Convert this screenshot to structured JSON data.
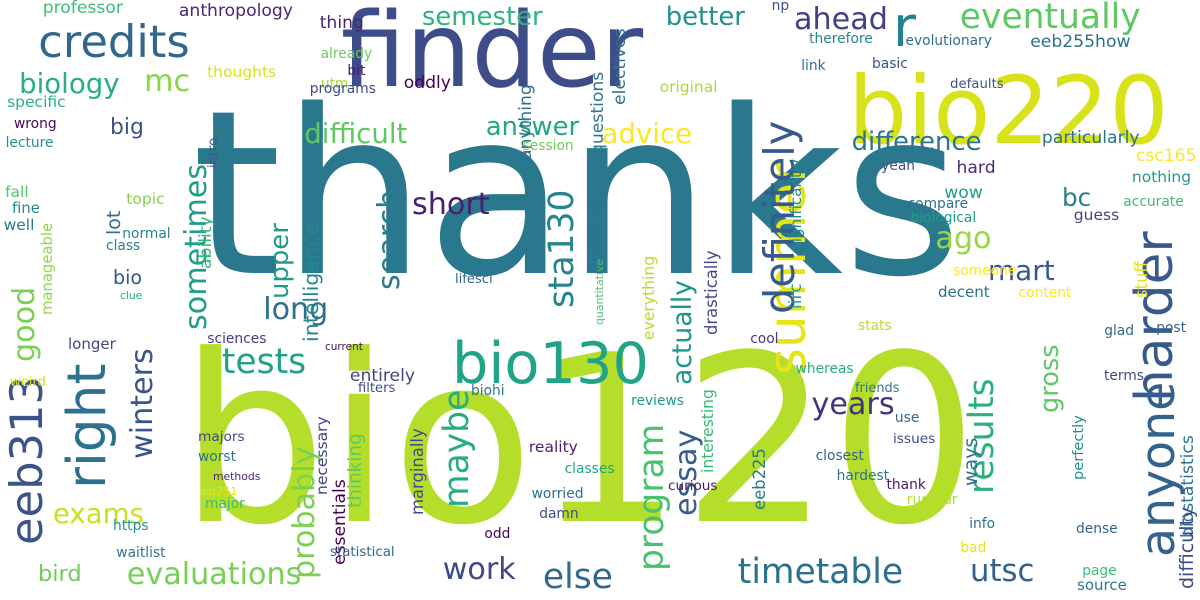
{
  "words": [
    {
      "text": "thanks",
      "color": "#2a788e",
      "vertical": false
    },
    {
      "text": "bio120",
      "color": "#b5de2b",
      "vertical": false
    },
    {
      "text": "finder",
      "color": "#3e4c8a",
      "vertical": false
    },
    {
      "text": "bio220",
      "color": "#d8e219",
      "vertical": false
    },
    {
      "text": "credits",
      "color": "#31668e",
      "vertical": false
    },
    {
      "text": "r",
      "color": "#26828e",
      "vertical": false
    },
    {
      "text": "eventually",
      "color": "#5ec962",
      "vertical": false
    },
    {
      "text": "bio130",
      "color": "#20a386",
      "vertical": false
    },
    {
      "text": "summer",
      "color": "#e5e419",
      "vertical": true
    },
    {
      "text": "right",
      "color": "#2c728e",
      "vertical": true
    },
    {
      "text": "eeb313",
      "color": "#3b528b",
      "vertical": true
    },
    {
      "text": "harder",
      "color": "#38598c",
      "vertical": true
    },
    {
      "text": "anyone",
      "color": "#33638d",
      "vertical": true
    },
    {
      "text": "definitely",
      "color": "#375a8c",
      "vertical": true
    },
    {
      "text": "evaluations",
      "color": "#75d054",
      "vertical": false
    },
    {
      "text": "timetable",
      "color": "#2d708e",
      "vertical": false
    },
    {
      "text": "work",
      "color": "#3e4989",
      "vertical": false
    },
    {
      "text": "else",
      "color": "#2f6b8e",
      "vertical": false
    },
    {
      "text": "tests",
      "color": "#1fa187",
      "vertical": false
    },
    {
      "text": "sta130",
      "color": "#25848e",
      "vertical": true
    },
    {
      "text": "maybe",
      "color": "#27ad81",
      "vertical": true
    },
    {
      "text": "results",
      "color": "#2ab07f",
      "vertical": true
    },
    {
      "text": "program",
      "color": "#4ac16d",
      "vertical": true
    },
    {
      "text": "search",
      "color": "#287c8e",
      "vertical": true
    },
    {
      "text": "good",
      "color": "#7ad151",
      "vertical": true
    },
    {
      "text": "sometimes",
      "color": "#1f9e89",
      "vertical": true
    },
    {
      "text": "mart",
      "color": "#39568c",
      "vertical": false
    },
    {
      "text": "ago",
      "color": "#95d840",
      "vertical": false
    },
    {
      "text": "utsc",
      "color": "#355f8d",
      "vertical": false
    },
    {
      "text": "essay",
      "color": "#365d8d",
      "vertical": true
    },
    {
      "text": "years",
      "color": "#46337e",
      "vertical": false
    },
    {
      "text": "semester",
      "color": "#2fb47c",
      "vertical": false
    },
    {
      "text": "biology",
      "color": "#28ae80",
      "vertical": false
    },
    {
      "text": "mc",
      "color": "#8bd646",
      "vertical": false
    },
    {
      "text": "ahead",
      "color": "#424086",
      "vertical": false
    },
    {
      "text": "better",
      "color": "#21918c",
      "vertical": false
    },
    {
      "text": "difficult",
      "color": "#5ec962",
      "vertical": false
    },
    {
      "text": "answer",
      "color": "#22a785",
      "vertical": false
    },
    {
      "text": "advice",
      "color": "#fde725",
      "vertical": false
    },
    {
      "text": "difference",
      "color": "#2c738e",
      "vertical": false
    },
    {
      "text": "short",
      "color": "#481f70",
      "vertical": false
    },
    {
      "text": "long",
      "color": "#2e6e8e",
      "vertical": false
    },
    {
      "text": "upper",
      "color": "#1e9b8a",
      "vertical": true
    },
    {
      "text": "bc",
      "color": "#277f8e",
      "vertical": false
    },
    {
      "text": "big",
      "color": "#3b528b",
      "vertical": false
    },
    {
      "text": "bio",
      "color": "#39568c",
      "vertical": false
    },
    {
      "text": "winters",
      "color": "#3a548c",
      "vertical": true
    },
    {
      "text": "probably",
      "color": "#7ad151",
      "vertical": true
    },
    {
      "text": "actually",
      "color": "#1f968b",
      "vertical": true
    },
    {
      "text": "gross",
      "color": "#5ec962",
      "vertical": true
    },
    {
      "text": "exams",
      "color": "#cae11f",
      "vertical": false
    },
    {
      "text": "bird",
      "color": "#6ccd5a",
      "vertical": false
    },
    {
      "text": "entirely",
      "color": "#414487",
      "vertical": false
    },
    {
      "text": "particularly",
      "color": "#2c728e",
      "vertical": false
    },
    {
      "text": "eeb255how",
      "color": "#2d708e",
      "vertical": false
    },
    {
      "text": "professor",
      "color": "#3dbc74",
      "vertical": false
    },
    {
      "text": "anthropology",
      "color": "#482878",
      "vertical": false
    },
    {
      "text": "thing",
      "color": "#482475",
      "vertical": false
    },
    {
      "text": "np",
      "color": "#3b528b",
      "vertical": false
    },
    {
      "text": "hard",
      "color": "#472d7b",
      "vertical": false
    },
    {
      "text": "wow",
      "color": "#1fa088",
      "vertical": false
    },
    {
      "text": "thoughts",
      "color": "#d8e219",
      "vertical": false
    },
    {
      "text": "already",
      "color": "#6ccd5a",
      "vertical": false
    },
    {
      "text": "bit",
      "color": "#481a6c",
      "vertical": false
    },
    {
      "text": "oddly",
      "color": "#440154",
      "vertical": false
    },
    {
      "text": "utm",
      "color": "#a2da37",
      "vertical": false
    },
    {
      "text": "programs",
      "color": "#3e4a89",
      "vertical": false
    },
    {
      "text": "anything",
      "color": "#2e6f8e",
      "vertical": true
    },
    {
      "text": "electives",
      "color": "#2d718e",
      "vertical": true
    },
    {
      "text": "questions",
      "color": "#2a768e",
      "vertical": true
    },
    {
      "text": "therefore",
      "color": "#25838e",
      "vertical": false
    },
    {
      "text": "evolutionary",
      "color": "#2c728e",
      "vertical": false
    },
    {
      "text": "link",
      "color": "#2d708e",
      "vertical": false
    },
    {
      "text": "basic",
      "color": "#3b528b",
      "vertical": false
    },
    {
      "text": "defaults",
      "color": "#39558c",
      "vertical": false
    },
    {
      "text": "original",
      "color": "#a8db34",
      "vertical": false
    },
    {
      "text": "specific",
      "color": "#2ab07f",
      "vertical": false
    },
    {
      "text": "wrong",
      "color": "#450559",
      "vertical": false
    },
    {
      "text": "lecture",
      "color": "#20928c",
      "vertical": false
    },
    {
      "text": "session",
      "color": "#6ccd5a",
      "vertical": false
    },
    {
      "text": "intro",
      "color": "#375b8d",
      "vertical": true
    },
    {
      "text": "significantly",
      "color": "#23898e",
      "vertical": true
    },
    {
      "text": "yeah",
      "color": "#3a538b",
      "vertical": false
    },
    {
      "text": "csc165",
      "color": "#fde725",
      "vertical": false
    },
    {
      "text": "nothing",
      "color": "#1f9a8a",
      "vertical": false
    },
    {
      "text": "fall",
      "color": "#56c667",
      "vertical": false
    },
    {
      "text": "fine",
      "color": "#23888e",
      "vertical": false
    },
    {
      "text": "well",
      "color": "#2a768e",
      "vertical": false
    },
    {
      "text": "topic",
      "color": "#84d44b",
      "vertical": false
    },
    {
      "text": "lot",
      "color": "#2e6f8e",
      "vertical": true
    },
    {
      "text": "ability",
      "color": "#31b57b",
      "vertical": true
    },
    {
      "text": "intelligence",
      "color": "#24878e",
      "vertical": true
    },
    {
      "text": "instead",
      "color": "#2c738e",
      "vertical": true
    },
    {
      "text": "accurate",
      "color": "#3dbc74",
      "vertical": false
    },
    {
      "text": "guess",
      "color": "#414487",
      "vertical": false
    },
    {
      "text": "compare",
      "color": "#2d708e",
      "vertical": false
    },
    {
      "text": "biological",
      "color": "#1f9e89",
      "vertical": false
    },
    {
      "text": "manageable",
      "color": "#8fd744",
      "vertical": true
    },
    {
      "text": "class",
      "color": "#287d8e",
      "vertical": false
    },
    {
      "text": "normal",
      "color": "#24878e",
      "vertical": false
    },
    {
      "text": "quantitative",
      "color": "#4ac16d",
      "vertical": true
    },
    {
      "text": "everything",
      "color": "#b8de29",
      "vertical": true
    },
    {
      "text": "drastically",
      "color": "#3e4989",
      "vertical": true
    },
    {
      "text": "iirc",
      "color": "#20a486",
      "vertical": true
    },
    {
      "text": "stuff",
      "color": "#e5e419",
      "vertical": true
    },
    {
      "text": "someone",
      "color": "#fde725",
      "vertical": false
    },
    {
      "text": "lifesci",
      "color": "#33638d",
      "vertical": false
    },
    {
      "text": "clue",
      "color": "#22a785",
      "vertical": false
    },
    {
      "text": "decent",
      "color": "#2d708e",
      "vertical": false
    },
    {
      "text": "content",
      "color": "#fde725",
      "vertical": false
    },
    {
      "text": "stats",
      "color": "#b5de2b",
      "vertical": false
    },
    {
      "text": "glad",
      "color": "#31688e",
      "vertical": false
    },
    {
      "text": "post",
      "color": "#33638d",
      "vertical": false
    },
    {
      "text": "longer",
      "color": "#3f4788",
      "vertical": false
    },
    {
      "text": "sciences",
      "color": "#443a83",
      "vertical": false
    },
    {
      "text": "cool",
      "color": "#453781",
      "vertical": false
    },
    {
      "text": "whereas",
      "color": "#26ad81",
      "vertical": false
    },
    {
      "text": "terms",
      "color": "#3e4989",
      "vertical": false
    },
    {
      "text": "current",
      "color": "#471164",
      "vertical": false
    },
    {
      "text": "weird",
      "color": "#d8e219",
      "vertical": false
    },
    {
      "text": "filters",
      "color": "#3e4c8a",
      "vertical": false
    },
    {
      "text": "biohi",
      "color": "#2c728e",
      "vertical": false
    },
    {
      "text": "friends",
      "color": "#2a768e",
      "vertical": false
    },
    {
      "text": "reviews",
      "color": "#1f998a",
      "vertical": false
    },
    {
      "text": "use",
      "color": "#31668e",
      "vertical": false
    },
    {
      "text": "issues",
      "color": "#3e4989",
      "vertical": false
    },
    {
      "text": "necessary",
      "color": "#414487",
      "vertical": true
    },
    {
      "text": "marginally",
      "color": "#3e4989",
      "vertical": true
    },
    {
      "text": "interesting",
      "color": "#37b878",
      "vertical": true
    },
    {
      "text": "eeb225",
      "color": "#2a788e",
      "vertical": true
    },
    {
      "text": "perfectly",
      "color": "#20928c",
      "vertical": true
    },
    {
      "text": "biostatistics",
      "color": "#2c738e",
      "vertical": true
    },
    {
      "text": "reality",
      "color": "#481f70",
      "vertical": false
    },
    {
      "text": "classes",
      "color": "#20a386",
      "vertical": false
    },
    {
      "text": "worried",
      "color": "#2d708e",
      "vertical": false
    },
    {
      "text": "damn",
      "color": "#3e4989",
      "vertical": false
    },
    {
      "text": "closest",
      "color": "#33638d",
      "vertical": false
    },
    {
      "text": "hardest",
      "color": "#2a768e",
      "vertical": false
    },
    {
      "text": "ways",
      "color": "#2e6e8e",
      "vertical": true
    },
    {
      "text": "majors",
      "color": "#3e4989",
      "vertical": false
    },
    {
      "text": "worst",
      "color": "#2e6f8e",
      "vertical": false
    },
    {
      "text": "methods",
      "color": "#482878",
      "vertical": false
    },
    {
      "text": "ast251",
      "color": "#e5e419",
      "vertical": false
    },
    {
      "text": "major",
      "color": "#3bbb75",
      "vertical": false
    },
    {
      "text": "essentials",
      "color": "#440154",
      "vertical": true
    },
    {
      "text": "thinking",
      "color": "#5ec962",
      "vertical": true
    },
    {
      "text": "https",
      "color": "#20928c",
      "vertical": false
    },
    {
      "text": "rumour",
      "color": "#b5de2b",
      "vertical": false
    },
    {
      "text": "thank",
      "color": "#481769",
      "vertical": false
    },
    {
      "text": "info",
      "color": "#2c728e",
      "vertical": false
    },
    {
      "text": "curious",
      "color": "#481a6c",
      "vertical": false
    },
    {
      "text": "odd",
      "color": "#440154",
      "vertical": false
    },
    {
      "text": "waitlist",
      "color": "#2a788e",
      "vertical": false
    },
    {
      "text": "statistical",
      "color": "#31668e",
      "vertical": false
    },
    {
      "text": "difficulty",
      "color": "#3e4989",
      "vertical": true
    },
    {
      "text": "dense",
      "color": "#33638d",
      "vertical": false
    },
    {
      "text": "bad",
      "color": "#e5e419",
      "vertical": false
    },
    {
      "text": "page",
      "color": "#3bbb75",
      "vertical": false
    },
    {
      "text": "source",
      "color": "#2a788e",
      "vertical": false
    }
  ]
}
